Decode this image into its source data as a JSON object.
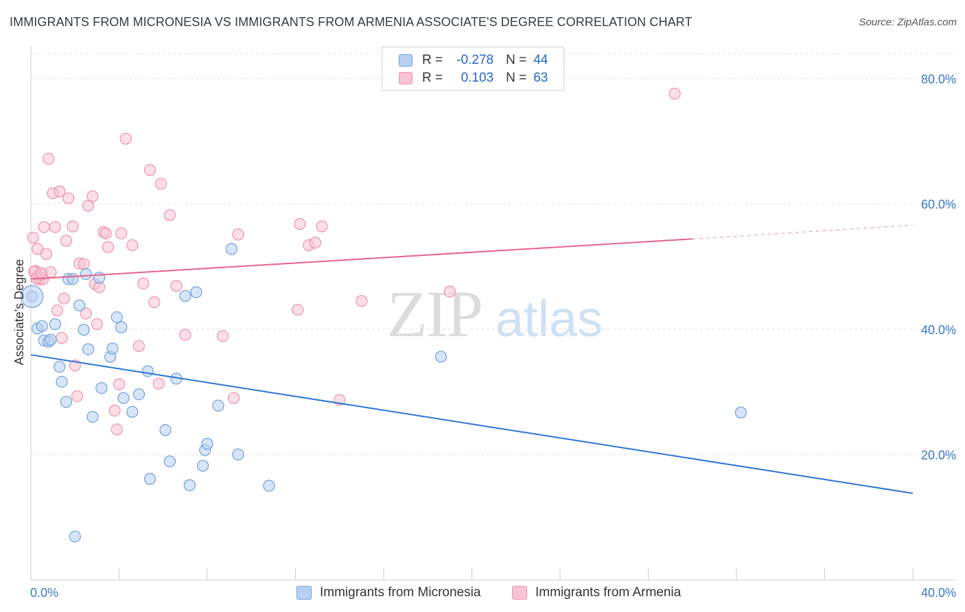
{
  "title": "IMMIGRANTS FROM MICRONESIA VS IMMIGRANTS FROM ARMENIA ASSOCIATE'S DEGREE CORRELATION CHART",
  "source": "Source: ZipAtlas.com",
  "watermark": {
    "zip": "ZIP",
    "atlas": "atlas"
  },
  "legend": {
    "rows": [
      {
        "r_label": "R =",
        "r_value": "-0.278",
        "n_label": "N =",
        "n_value": "44"
      },
      {
        "r_label": "R =",
        "r_value": "0.103",
        "n_label": "N =",
        "n_value": "63"
      }
    ]
  },
  "colors": {
    "micronesia_fill": "#b8d0f2",
    "micronesia_stroke": "#6a9fdc",
    "micronesia_line": "#2a74d6",
    "armenia_fill": "#f9c4d2",
    "armenia_stroke": "#ec8fab",
    "armenia_line": "#e4628a",
    "axis_label": "#3a78c8",
    "grid": "#e2e2e2"
  },
  "chart_data": {
    "type": "scatter",
    "xlabel": "",
    "ylabel": "Associate's Degree",
    "xlim": [
      0,
      40
    ],
    "ylim": [
      0,
      84
    ],
    "x_tick_labels": [
      {
        "value": 0,
        "label": "0.0%"
      },
      {
        "value": 40,
        "label": "40.0%"
      }
    ],
    "y_tick_labels": [
      {
        "value": 20,
        "label": "20.0%"
      },
      {
        "value": 40,
        "label": "40.0%"
      },
      {
        "value": 60,
        "label": "60.0%"
      },
      {
        "value": 80,
        "label": "80.0%"
      }
    ],
    "grid": true,
    "legend_position": "top-center",
    "series": [
      {
        "name": "Immigrants from Micronesia",
        "points": [
          [
            0.05,
            45.2
          ],
          [
            0.3,
            40.1
          ],
          [
            0.5,
            40.5
          ],
          [
            0.6,
            38.2
          ],
          [
            0.8,
            38.0
          ],
          [
            0.9,
            38.3
          ],
          [
            1.1,
            40.8
          ],
          [
            1.3,
            34.0
          ],
          [
            1.4,
            31.6
          ],
          [
            1.6,
            28.4
          ],
          [
            1.7,
            48.0
          ],
          [
            1.9,
            48.0
          ],
          [
            2.2,
            43.8
          ],
          [
            2.4,
            39.9
          ],
          [
            2.5,
            48.8
          ],
          [
            2.6,
            36.8
          ],
          [
            2.8,
            26.0
          ],
          [
            3.1,
            48.2
          ],
          [
            3.2,
            30.6
          ],
          [
            3.6,
            35.6
          ],
          [
            3.7,
            36.9
          ],
          [
            3.9,
            41.9
          ],
          [
            4.1,
            40.3
          ],
          [
            4.2,
            29.0
          ],
          [
            4.6,
            26.8
          ],
          [
            4.9,
            29.6
          ],
          [
            5.3,
            33.3
          ],
          [
            5.4,
            16.1
          ],
          [
            6.1,
            23.9
          ],
          [
            6.3,
            18.9
          ],
          [
            6.6,
            32.1
          ],
          [
            7.0,
            45.3
          ],
          [
            7.2,
            15.1
          ],
          [
            7.5,
            45.9
          ],
          [
            7.8,
            18.2
          ],
          [
            7.9,
            20.7
          ],
          [
            8.0,
            21.7
          ],
          [
            8.5,
            27.8
          ],
          [
            9.1,
            52.8
          ],
          [
            9.4,
            20.0
          ],
          [
            10.8,
            15.0
          ],
          [
            18.6,
            35.6
          ],
          [
            32.2,
            26.7
          ],
          [
            2.0,
            6.9
          ]
        ],
        "trend": {
          "x": [
            0,
            40
          ],
          "y": [
            35.9,
            13.8
          ]
        }
      },
      {
        "name": "Immigrants from Armenia",
        "points": [
          [
            0.1,
            54.6
          ],
          [
            0.2,
            49.3
          ],
          [
            0.3,
            52.8
          ],
          [
            0.35,
            48.5
          ],
          [
            0.4,
            47.9
          ],
          [
            0.5,
            48.7
          ],
          [
            0.6,
            56.3
          ],
          [
            0.7,
            52.0
          ],
          [
            0.8,
            67.2
          ],
          [
            0.9,
            49.1
          ],
          [
            1.0,
            61.7
          ],
          [
            1.1,
            56.3
          ],
          [
            1.2,
            43.0
          ],
          [
            1.3,
            62.0
          ],
          [
            1.4,
            38.6
          ],
          [
            1.5,
            44.9
          ],
          [
            1.6,
            54.1
          ],
          [
            1.7,
            60.9
          ],
          [
            1.9,
            56.4
          ],
          [
            2.0,
            34.2
          ],
          [
            2.1,
            29.3
          ],
          [
            2.2,
            50.5
          ],
          [
            2.4,
            50.4
          ],
          [
            2.5,
            42.5
          ],
          [
            2.6,
            59.7
          ],
          [
            2.8,
            61.2
          ],
          [
            2.9,
            47.2
          ],
          [
            3.0,
            40.8
          ],
          [
            3.1,
            46.7
          ],
          [
            3.3,
            55.5
          ],
          [
            3.4,
            55.3
          ],
          [
            3.5,
            53.1
          ],
          [
            3.8,
            27.0
          ],
          [
            3.9,
            24.0
          ],
          [
            4.0,
            31.2
          ],
          [
            4.1,
            55.3
          ],
          [
            4.3,
            70.4
          ],
          [
            4.6,
            53.4
          ],
          [
            4.9,
            37.3
          ],
          [
            5.1,
            47.3
          ],
          [
            5.4,
            65.4
          ],
          [
            5.6,
            44.3
          ],
          [
            5.8,
            31.3
          ],
          [
            5.9,
            63.2
          ],
          [
            6.3,
            58.2
          ],
          [
            6.6,
            46.9
          ],
          [
            7.0,
            39.1
          ],
          [
            8.7,
            38.9
          ],
          [
            9.2,
            29.0
          ],
          [
            9.4,
            55.1
          ],
          [
            12.1,
            43.1
          ],
          [
            12.2,
            56.8
          ],
          [
            12.6,
            53.4
          ],
          [
            12.9,
            53.8
          ],
          [
            13.2,
            56.4
          ],
          [
            14.0,
            28.7
          ],
          [
            15.0,
            44.5
          ],
          [
            19.0,
            46.0
          ],
          [
            29.2,
            77.6
          ],
          [
            0.15,
            49.2
          ],
          [
            0.55,
            48.0
          ],
          [
            0.25,
            48.1
          ],
          [
            0.45,
            49.0
          ]
        ],
        "trend": {
          "x": [
            0,
            30
          ],
          "y": [
            48.0,
            54.4
          ]
        },
        "trend_dashed": {
          "x": [
            30,
            40
          ],
          "y": [
            54.4,
            56.6
          ]
        }
      }
    ]
  }
}
